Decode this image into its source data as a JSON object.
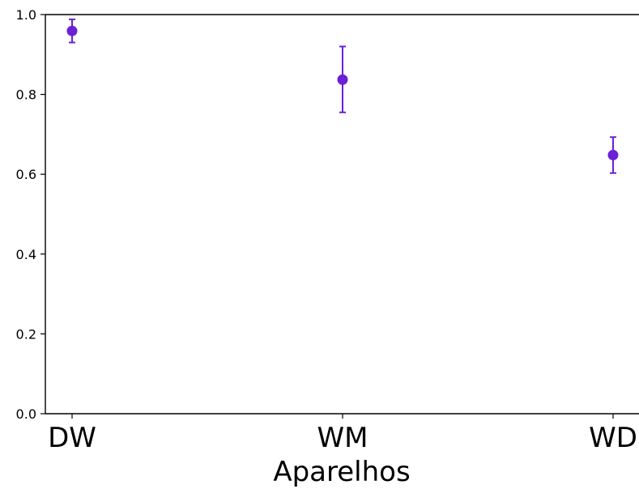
{
  "chart_data": {
    "type": "scatter",
    "categories": [
      "DW",
      "WM",
      "WD"
    ],
    "values": [
      0.959,
      0.837,
      0.648
    ],
    "error_low": [
      0.93,
      0.755,
      0.603
    ],
    "error_high": [
      0.988,
      0.92,
      0.693
    ],
    "xlabel": "Aparelhos",
    "ylabel": "",
    "ylim": [
      0.0,
      1.0
    ],
    "y_ticks": [
      "0.0",
      "0.2",
      "0.4",
      "0.6",
      "0.8",
      "1.0"
    ],
    "grid": false,
    "marker_color": "#6b1fd6"
  }
}
